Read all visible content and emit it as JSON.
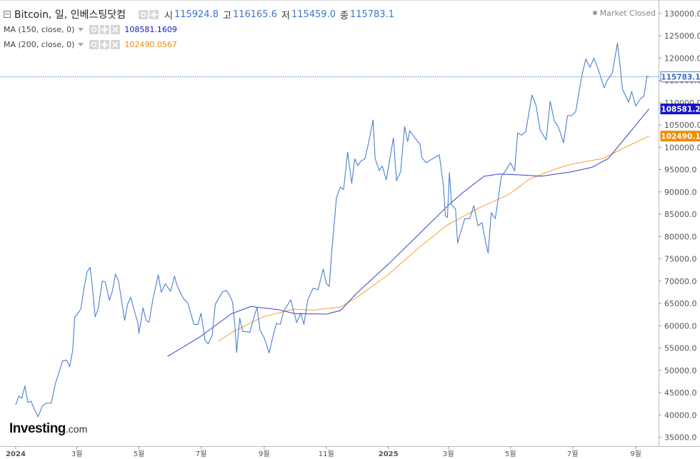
{
  "legend": {
    "title": "Bitcoin, 일, 인베스팅닷컴",
    "ohlc": [
      {
        "label": "시",
        "value": "115924.8"
      },
      {
        "label": "고",
        "value": "116165.6"
      },
      {
        "label": "저",
        "value": "115459.0"
      },
      {
        "label": "종",
        "value": "115783.1"
      }
    ],
    "ma150": {
      "label": "MA (150, close, 0)",
      "value": "108581.1609"
    },
    "ma200": {
      "label": "MA (200, close, 0)",
      "value": "102490.0567"
    }
  },
  "market_status": "Market Closed",
  "logo": {
    "main": "Investing",
    "suffix": ".com"
  },
  "colors": {
    "price": "#4a80cf",
    "ma150": "#3d3dc4",
    "ma200": "#f0a030",
    "last_price_tag": "#4a80cf",
    "ma150_tag": "#1414cc",
    "ma200_tag": "#f08c00"
  },
  "chart_data": {
    "type": "line",
    "ylim": [
      33000,
      133000
    ],
    "xlim": [
      "2024-01-01",
      "2025-09-22"
    ],
    "y_ticks": [
      "130000.0",
      "125000.0",
      "120000.0",
      "115000.0",
      "110000.0",
      "105000.0",
      "100000.0",
      "95000.0",
      "90000.0",
      "85000.0",
      "80000.0",
      "75000.0",
      "70000.0",
      "65000.0",
      "60000.0",
      "55000.0",
      "50000.0",
      "45000.0",
      "40000.0",
      "35000.0"
    ],
    "x_ticks": [
      {
        "date": "2024-01-01",
        "label": "2024"
      },
      {
        "date": "2024-03-01",
        "label": "3월"
      },
      {
        "date": "2024-05-01",
        "label": "5월"
      },
      {
        "date": "2024-07-01",
        "label": "7월"
      },
      {
        "date": "2024-09-01",
        "label": "9월"
      },
      {
        "date": "2024-11-01",
        "label": "11월"
      },
      {
        "date": "2025-01-01",
        "label": "2025"
      },
      {
        "date": "2025-03-01",
        "label": "3월"
      },
      {
        "date": "2025-05-01",
        "label": "5월"
      },
      {
        "date": "2025-07-01",
        "label": "7월"
      },
      {
        "date": "2025-09-01",
        "label": "9월"
      }
    ],
    "last_price": {
      "value": 115783.1,
      "label": "115783.1"
    },
    "ma150_last": {
      "value": 108581.2,
      "label": "108581.2"
    },
    "ma200_last": {
      "value": 102490.1,
      "label": "102490.1"
    },
    "series": [
      {
        "name": "Bitcoin",
        "type": "line",
        "points": [
          [
            "2024-01-01",
            42300
          ],
          [
            "2024-01-04",
            44200
          ],
          [
            "2024-01-07",
            43700
          ],
          [
            "2024-01-10",
            46500
          ],
          [
            "2024-01-13",
            42800
          ],
          [
            "2024-01-16",
            43100
          ],
          [
            "2024-01-19",
            41400
          ],
          [
            "2024-01-23",
            39600
          ],
          [
            "2024-01-27",
            42000
          ],
          [
            "2024-01-31",
            42600
          ],
          [
            "2024-02-05",
            42700
          ],
          [
            "2024-02-09",
            47100
          ],
          [
            "2024-02-13",
            49900
          ],
          [
            "2024-02-16",
            52100
          ],
          [
            "2024-02-20",
            52300
          ],
          [
            "2024-02-23",
            50800
          ],
          [
            "2024-02-26",
            54500
          ],
          [
            "2024-02-28",
            62000
          ],
          [
            "2024-03-01",
            62400
          ],
          [
            "2024-03-05",
            63800
          ],
          [
            "2024-03-08",
            68300
          ],
          [
            "2024-03-11",
            72000
          ],
          [
            "2024-03-14",
            73100
          ],
          [
            "2024-03-16",
            69500
          ],
          [
            "2024-03-19",
            62000
          ],
          [
            "2024-03-22",
            63800
          ],
          [
            "2024-03-26",
            70000
          ],
          [
            "2024-03-29",
            69800
          ],
          [
            "2024-04-02",
            65700
          ],
          [
            "2024-04-05",
            67800
          ],
          [
            "2024-04-08",
            71600
          ],
          [
            "2024-04-11",
            70000
          ],
          [
            "2024-04-13",
            67100
          ],
          [
            "2024-04-17",
            61200
          ],
          [
            "2024-04-20",
            64900
          ],
          [
            "2024-04-23",
            66400
          ],
          [
            "2024-04-26",
            63800
          ],
          [
            "2024-04-30",
            60600
          ],
          [
            "2024-05-01",
            58300
          ],
          [
            "2024-05-05",
            64000
          ],
          [
            "2024-05-08",
            61200
          ],
          [
            "2024-05-11",
            60800
          ],
          [
            "2024-05-15",
            66200
          ],
          [
            "2024-05-20",
            71400
          ],
          [
            "2024-05-23",
            67500
          ],
          [
            "2024-05-27",
            69400
          ],
          [
            "2024-06-01",
            67700
          ],
          [
            "2024-06-05",
            71100
          ],
          [
            "2024-06-07",
            69300
          ],
          [
            "2024-06-11",
            67300
          ],
          [
            "2024-06-14",
            66000
          ],
          [
            "2024-06-18",
            65100
          ],
          [
            "2024-06-24",
            60300
          ],
          [
            "2024-06-28",
            60300
          ],
          [
            "2024-07-01",
            62800
          ],
          [
            "2024-07-05",
            56700
          ],
          [
            "2024-07-08",
            55900
          ],
          [
            "2024-07-12",
            57800
          ],
          [
            "2024-07-15",
            64800
          ],
          [
            "2024-07-22",
            67600
          ],
          [
            "2024-07-26",
            67900
          ],
          [
            "2024-07-29",
            66800
          ],
          [
            "2024-08-01",
            65300
          ],
          [
            "2024-08-03",
            60700
          ],
          [
            "2024-08-05",
            54000
          ],
          [
            "2024-08-08",
            61700
          ],
          [
            "2024-08-11",
            58700
          ],
          [
            "2024-08-14",
            58700
          ],
          [
            "2024-08-18",
            58500
          ],
          [
            "2024-08-21",
            61100
          ],
          [
            "2024-08-25",
            64100
          ],
          [
            "2024-08-28",
            59000
          ],
          [
            "2024-09-01",
            57300
          ],
          [
            "2024-09-06",
            53900
          ],
          [
            "2024-09-09",
            57000
          ],
          [
            "2024-09-13",
            60500
          ],
          [
            "2024-09-17",
            60300
          ],
          [
            "2024-09-20",
            63200
          ],
          [
            "2024-09-27",
            65800
          ],
          [
            "2024-09-30",
            63300
          ],
          [
            "2024-10-03",
            60700
          ],
          [
            "2024-10-07",
            62800
          ],
          [
            "2024-10-10",
            60300
          ],
          [
            "2024-10-14",
            65900
          ],
          [
            "2024-10-19",
            68400
          ],
          [
            "2024-10-24",
            68100
          ],
          [
            "2024-10-29",
            72700
          ],
          [
            "2024-11-01",
            69500
          ],
          [
            "2024-11-04",
            68800
          ],
          [
            "2024-11-06",
            75600
          ],
          [
            "2024-11-11",
            88700
          ],
          [
            "2024-11-13",
            90000
          ],
          [
            "2024-11-15",
            91100
          ],
          [
            "2024-11-18",
            90500
          ],
          [
            "2024-11-22",
            98900
          ],
          [
            "2024-11-26",
            91900
          ],
          [
            "2024-11-29",
            97400
          ],
          [
            "2024-12-02",
            95900
          ],
          [
            "2024-12-05",
            96900
          ],
          [
            "2024-12-09",
            97400
          ],
          [
            "2024-12-13",
            101400
          ],
          [
            "2024-12-17",
            106100
          ],
          [
            "2024-12-19",
            97500
          ],
          [
            "2024-12-23",
            94800
          ],
          [
            "2024-12-26",
            95800
          ],
          [
            "2024-12-30",
            92700
          ],
          [
            "2025-01-03",
            98100
          ],
          [
            "2025-01-06",
            102100
          ],
          [
            "2025-01-09",
            92500
          ],
          [
            "2025-01-13",
            94500
          ],
          [
            "2025-01-17",
            104600
          ],
          [
            "2025-01-20",
            101200
          ],
          [
            "2025-01-22",
            103700
          ],
          [
            "2025-01-27",
            102100
          ],
          [
            "2025-02-01",
            100700
          ],
          [
            "2025-02-03",
            97700
          ],
          [
            "2025-02-07",
            96500
          ],
          [
            "2025-02-14",
            97500
          ],
          [
            "2025-02-20",
            98300
          ],
          [
            "2025-02-24",
            91600
          ],
          [
            "2025-02-26",
            84600
          ],
          [
            "2025-02-28",
            84300
          ],
          [
            "2025-03-02",
            94300
          ],
          [
            "2025-03-04",
            87200
          ],
          [
            "2025-03-08",
            86100
          ],
          [
            "2025-03-10",
            78500
          ],
          [
            "2025-03-13",
            80900
          ],
          [
            "2025-03-17",
            84000
          ],
          [
            "2025-03-22",
            84000
          ],
          [
            "2025-03-26",
            86900
          ],
          [
            "2025-03-30",
            82400
          ],
          [
            "2025-04-03",
            83100
          ],
          [
            "2025-04-07",
            78300
          ],
          [
            "2025-04-09",
            76300
          ],
          [
            "2025-04-12",
            85300
          ],
          [
            "2025-04-16",
            84000
          ],
          [
            "2025-04-22",
            93400
          ],
          [
            "2025-04-26",
            94700
          ],
          [
            "2025-05-01",
            96500
          ],
          [
            "2025-05-05",
            94700
          ],
          [
            "2025-05-08",
            103200
          ],
          [
            "2025-05-12",
            102700
          ],
          [
            "2025-05-16",
            103500
          ],
          [
            "2025-05-22",
            111700
          ],
          [
            "2025-05-26",
            109400
          ],
          [
            "2025-05-30",
            103900
          ],
          [
            "2025-06-05",
            101600
          ],
          [
            "2025-06-09",
            110300
          ],
          [
            "2025-06-13",
            105900
          ],
          [
            "2025-06-17",
            104600
          ],
          [
            "2025-06-22",
            101000
          ],
          [
            "2025-06-26",
            107100
          ],
          [
            "2025-06-30",
            107100
          ],
          [
            "2025-07-04",
            108000
          ],
          [
            "2025-07-10",
            116000
          ],
          [
            "2025-07-14",
            119800
          ],
          [
            "2025-07-18",
            117900
          ],
          [
            "2025-07-22",
            119900
          ],
          [
            "2025-07-26",
            117600
          ],
          [
            "2025-08-01",
            113300
          ],
          [
            "2025-08-04",
            115000
          ],
          [
            "2025-08-09",
            116700
          ],
          [
            "2025-08-14",
            123300
          ],
          [
            "2025-08-17",
            117500
          ],
          [
            "2025-08-19",
            113000
          ],
          [
            "2025-08-25",
            110100
          ],
          [
            "2025-08-28",
            112500
          ],
          [
            "2025-09-01",
            109200
          ],
          [
            "2025-09-05",
            110700
          ],
          [
            "2025-09-09",
            111500
          ],
          [
            "2025-09-12",
            115900
          ],
          [
            "2025-09-14",
            115783
          ]
        ]
      },
      {
        "name": "MA (150, close, 0)",
        "type": "line",
        "points": [
          [
            "2024-05-29",
            53100
          ],
          [
            "2024-06-30",
            57500
          ],
          [
            "2024-07-31",
            62700
          ],
          [
            "2024-08-19",
            64300
          ],
          [
            "2024-09-15",
            63600
          ],
          [
            "2024-10-01",
            62700
          ],
          [
            "2024-11-01",
            62600
          ],
          [
            "2024-11-15",
            63400
          ],
          [
            "2024-12-01",
            67300
          ],
          [
            "2024-12-31",
            73600
          ],
          [
            "2025-01-31",
            80500
          ],
          [
            "2025-02-28",
            86800
          ],
          [
            "2025-03-15",
            89800
          ],
          [
            "2025-04-05",
            93500
          ],
          [
            "2025-04-20",
            94000
          ],
          [
            "2025-05-10",
            93800
          ],
          [
            "2025-05-31",
            93500
          ],
          [
            "2025-06-30",
            94500
          ],
          [
            "2025-07-20",
            95500
          ],
          [
            "2025-08-05",
            97500
          ],
          [
            "2025-08-25",
            103000
          ],
          [
            "2025-09-14",
            108581
          ]
        ]
      },
      {
        "name": "MA (200, close, 0)",
        "type": "line",
        "points": [
          [
            "2024-07-18",
            56500
          ],
          [
            "2024-08-01",
            58600
          ],
          [
            "2024-08-31",
            62000
          ],
          [
            "2024-09-30",
            63700
          ],
          [
            "2024-10-20",
            63500
          ],
          [
            "2024-11-15",
            64200
          ],
          [
            "2024-11-30",
            66200
          ],
          [
            "2024-12-31",
            71300
          ],
          [
            "2025-01-31",
            77500
          ],
          [
            "2025-02-28",
            82600
          ],
          [
            "2025-03-31",
            86400
          ],
          [
            "2025-04-30",
            89500
          ],
          [
            "2025-05-20",
            92900
          ],
          [
            "2025-06-15",
            95200
          ],
          [
            "2025-06-30",
            96200
          ],
          [
            "2025-07-31",
            97500
          ],
          [
            "2025-08-20",
            99800
          ],
          [
            "2025-09-14",
            102490
          ]
        ]
      }
    ]
  }
}
